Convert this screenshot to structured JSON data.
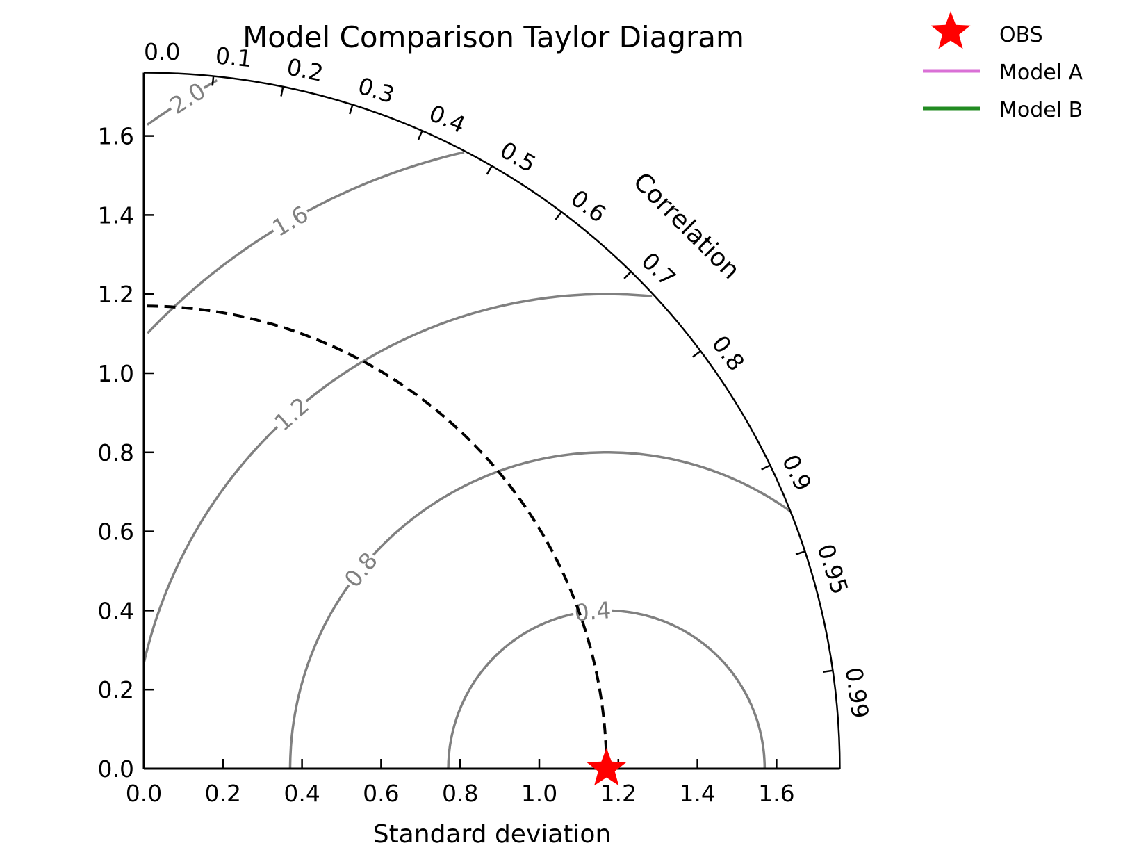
{
  "chart_data": {
    "type": "scatter",
    "subtype": "taylor-diagram",
    "title": "Model Comparison Taylor Diagram",
    "xlabel": "Standard deviation",
    "ylabel": "",
    "angular_label": "Correlation",
    "std_range": [
      0,
      1.76
    ],
    "std_ticks": [
      "0.0",
      "0.2",
      "0.4",
      "0.6",
      "0.8",
      "1.0",
      "1.2",
      "1.4",
      "1.6"
    ],
    "correlation_ticks": [
      "0.0",
      "0.1",
      "0.2",
      "0.3",
      "0.4",
      "0.5",
      "0.6",
      "0.7",
      "0.8",
      "0.9",
      "0.95",
      "0.99"
    ],
    "reference": {
      "name": "OBS",
      "std": 1.17,
      "correlation": 1.0,
      "color": "#ff0000",
      "marker": "star"
    },
    "rms_contours": [
      0.4,
      0.8,
      1.2,
      1.6,
      2.0
    ],
    "rms_contour_labels": [
      "0.4",
      "0.8",
      "1.2",
      "1.6",
      "2.0"
    ],
    "rms_contour_color": "#808080",
    "series": [
      {
        "name": "Model A",
        "color": "#da70d6",
        "points": []
      },
      {
        "name": "Model B",
        "color": "#228b22",
        "points": []
      }
    ],
    "legend": {
      "placement": "top-right",
      "entries": [
        "OBS",
        "Model A",
        "Model B"
      ]
    },
    "grid": false
  }
}
